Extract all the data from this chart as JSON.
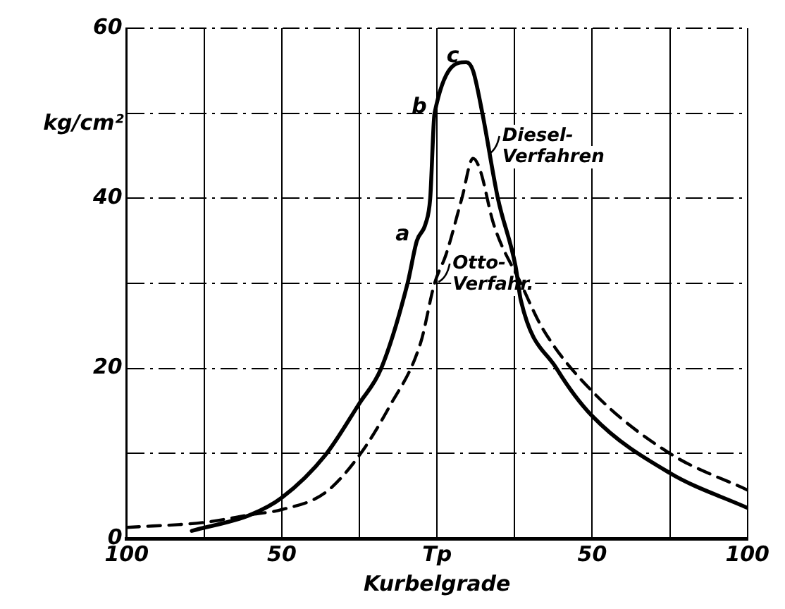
{
  "chart_data": {
    "type": "line",
    "xlabel": "Kurbelgrade",
    "ylabel": "kg/cm²",
    "xlim": [
      -100,
      100
    ],
    "ylim": [
      0,
      60
    ],
    "xticks": [
      {
        "value": -100,
        "label": "100"
      },
      {
        "value": -75,
        "label": null
      },
      {
        "value": -50,
        "label": "50"
      },
      {
        "value": -25,
        "label": null
      },
      {
        "value": 0,
        "label": "Tp"
      },
      {
        "value": 25,
        "label": null
      },
      {
        "value": 50,
        "label": "50"
      },
      {
        "value": 75,
        "label": null
      },
      {
        "value": 100,
        "label": "100"
      }
    ],
    "yticks": [
      0,
      {
        "value": 10,
        "label": null
      },
      20,
      {
        "value": 30,
        "label": null
      },
      40,
      {
        "value": 50,
        "label": null
      },
      60
    ],
    "grid": true,
    "legend": false,
    "marker": "none",
    "series": [
      {
        "color": "#000000",
        "line_style": "solid",
        "x": [
          -79,
          -60,
          -50,
          -36,
          -25,
          -18,
          -9.5,
          -6.5,
          -3.7,
          -2.2,
          -0.8,
          9.4,
          11.6,
          14.6,
          19.6,
          25.3,
          27,
          38.5,
          50,
          75,
          100
        ],
        "values": [
          0.9,
          2.8,
          4.8,
          9.8,
          15.9,
          20,
          30,
          35,
          37,
          40,
          50,
          56,
          55,
          50,
          40,
          32,
          28,
          20,
          14.4,
          7.7,
          3.6
        ]
      },
      {
        "color": "#000000",
        "line_style": "dashed",
        "x": [
          -100,
          -75,
          -60,
          -50,
          -36,
          -25,
          -15.5,
          -5.3,
          -0.8,
          2.9,
          8,
          11.6,
          13.9,
          18.2,
          27,
          34,
          50,
          75,
          100
        ],
        "values": [
          1.3,
          1.9,
          2.8,
          3.4,
          5.4,
          9.8,
          15.4,
          23,
          30,
          33.4,
          40,
          44.7,
          43.3,
          37,
          30,
          24.7,
          17.3,
          10,
          5.7
        ]
      }
    ],
    "annotations": [
      {
        "text": "a",
        "x": -6.5,
        "y": 35
      },
      {
        "text": "b",
        "x": -1,
        "y": 50
      },
      {
        "text": "c",
        "x": 9.4,
        "y": 56
      },
      {
        "text": "Diesel-Verfahren",
        "x": 16,
        "y": 45
      },
      {
        "text": "Otto-Verfahr.",
        "x": 0,
        "y": 30
      }
    ]
  }
}
